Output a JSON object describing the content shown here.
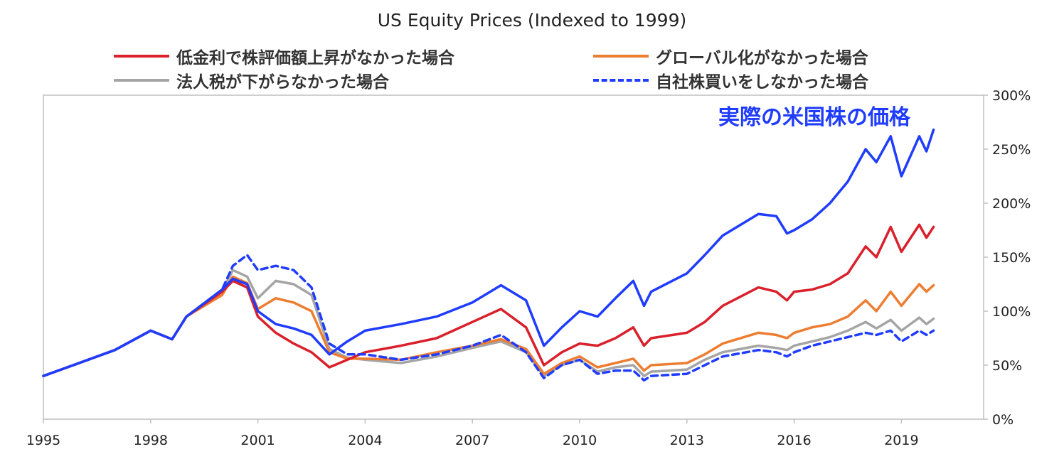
{
  "chart_data": {
    "type": "line",
    "title": "US Equity Prices (Indexed to 1999)",
    "annotation": "実際の米国株の価格",
    "x_ticks": [
      "1995",
      "1998",
      "2001",
      "2004",
      "2007",
      "2010",
      "2013",
      "2016",
      "2019"
    ],
    "y_ticks": [
      "0%",
      "50%",
      "100%",
      "150%",
      "200%",
      "250%",
      "300%"
    ],
    "xlim": [
      1995,
      2021.3
    ],
    "ylim": [
      0,
      300
    ],
    "grid": false,
    "legend_placement": "top",
    "series": [
      {
        "name": "",
        "color": "#1f3cff",
        "style": "solid",
        "points": [
          [
            1995,
            40
          ],
          [
            1996,
            52
          ],
          [
            1997,
            64
          ],
          [
            1998,
            82
          ],
          [
            1998.6,
            74
          ],
          [
            1999,
            95
          ],
          [
            2000,
            120
          ],
          [
            2000.3,
            130
          ],
          [
            2000.7,
            125
          ],
          [
            2001,
            100
          ],
          [
            2001.5,
            88
          ],
          [
            2002,
            84
          ],
          [
            2002.5,
            78
          ],
          [
            2003,
            60
          ],
          [
            2003.5,
            72
          ],
          [
            2004,
            82
          ],
          [
            2005,
            88
          ],
          [
            2006,
            95
          ],
          [
            2007,
            108
          ],
          [
            2007.8,
            124
          ],
          [
            2008.5,
            110
          ],
          [
            2009,
            68
          ],
          [
            2009.5,
            85
          ],
          [
            2010,
            100
          ],
          [
            2010.5,
            95
          ],
          [
            2011,
            112
          ],
          [
            2011.5,
            128
          ],
          [
            2011.8,
            105
          ],
          [
            2012,
            118
          ],
          [
            2013,
            135
          ],
          [
            2013.5,
            152
          ],
          [
            2014,
            170
          ],
          [
            2015,
            190
          ],
          [
            2015.5,
            188
          ],
          [
            2015.8,
            172
          ],
          [
            2016,
            175
          ],
          [
            2016.5,
            185
          ],
          [
            2017,
            200
          ],
          [
            2017.5,
            220
          ],
          [
            2018,
            250
          ],
          [
            2018.3,
            238
          ],
          [
            2018.7,
            262
          ],
          [
            2019,
            225
          ],
          [
            2019.5,
            262
          ],
          [
            2019.7,
            248
          ],
          [
            2019.9,
            268
          ]
        ]
      },
      {
        "name": "低金利で株評価額上昇がなかった場合",
        "color": "#d9202b",
        "style": "solid",
        "points": [
          [
            1995,
            40
          ],
          [
            1996,
            52
          ],
          [
            1997,
            64
          ],
          [
            1998,
            82
          ],
          [
            1998.6,
            74
          ],
          [
            1999,
            95
          ],
          [
            2000,
            118
          ],
          [
            2000.3,
            128
          ],
          [
            2000.7,
            122
          ],
          [
            2001,
            95
          ],
          [
            2001.5,
            80
          ],
          [
            2002,
            70
          ],
          [
            2002.5,
            62
          ],
          [
            2003,
            48
          ],
          [
            2003.5,
            55
          ],
          [
            2004,
            62
          ],
          [
            2005,
            68
          ],
          [
            2006,
            75
          ],
          [
            2007,
            90
          ],
          [
            2007.8,
            102
          ],
          [
            2008.5,
            85
          ],
          [
            2009,
            50
          ],
          [
            2009.5,
            62
          ],
          [
            2010,
            70
          ],
          [
            2010.5,
            68
          ],
          [
            2011,
            75
          ],
          [
            2011.5,
            85
          ],
          [
            2011.8,
            68
          ],
          [
            2012,
            75
          ],
          [
            2013,
            80
          ],
          [
            2013.5,
            90
          ],
          [
            2014,
            105
          ],
          [
            2015,
            122
          ],
          [
            2015.5,
            118
          ],
          [
            2015.8,
            110
          ],
          [
            2016,
            118
          ],
          [
            2016.5,
            120
          ],
          [
            2017,
            125
          ],
          [
            2017.5,
            135
          ],
          [
            2018,
            160
          ],
          [
            2018.3,
            150
          ],
          [
            2018.7,
            178
          ],
          [
            2019,
            155
          ],
          [
            2019.5,
            180
          ],
          [
            2019.7,
            168
          ],
          [
            2019.9,
            178
          ]
        ]
      },
      {
        "name": "グローバル化がなかった場合",
        "color": "#ed7d31",
        "style": "solid",
        "points": [
          [
            1995,
            40
          ],
          [
            1996,
            52
          ],
          [
            1997,
            64
          ],
          [
            1998,
            82
          ],
          [
            1998.6,
            74
          ],
          [
            1999,
            95
          ],
          [
            2000,
            115
          ],
          [
            2000.3,
            132
          ],
          [
            2000.7,
            126
          ],
          [
            2001,
            102
          ],
          [
            2001.5,
            112
          ],
          [
            2002,
            108
          ],
          [
            2002.5,
            100
          ],
          [
            2003,
            62
          ],
          [
            2003.5,
            56
          ],
          [
            2004,
            56
          ],
          [
            2005,
            55
          ],
          [
            2006,
            62
          ],
          [
            2007,
            68
          ],
          [
            2007.8,
            74
          ],
          [
            2008.5,
            65
          ],
          [
            2009,
            42
          ],
          [
            2009.5,
            52
          ],
          [
            2010,
            58
          ],
          [
            2010.5,
            48
          ],
          [
            2011,
            52
          ],
          [
            2011.5,
            56
          ],
          [
            2011.8,
            45
          ],
          [
            2012,
            50
          ],
          [
            2013,
            52
          ],
          [
            2013.5,
            60
          ],
          [
            2014,
            70
          ],
          [
            2015,
            80
          ],
          [
            2015.5,
            78
          ],
          [
            2015.8,
            75
          ],
          [
            2016,
            80
          ],
          [
            2016.5,
            85
          ],
          [
            2017,
            88
          ],
          [
            2017.5,
            95
          ],
          [
            2018,
            110
          ],
          [
            2018.3,
            100
          ],
          [
            2018.7,
            118
          ],
          [
            2019,
            105
          ],
          [
            2019.5,
            125
          ],
          [
            2019.7,
            118
          ],
          [
            2019.9,
            124
          ]
        ]
      },
      {
        "name": "法人税が下がらなかった場合",
        "color": "#a5a5a5",
        "style": "solid",
        "points": [
          [
            1995,
            40
          ],
          [
            1996,
            52
          ],
          [
            1997,
            64
          ],
          [
            1998,
            82
          ],
          [
            1998.6,
            74
          ],
          [
            1999,
            95
          ],
          [
            2000,
            118
          ],
          [
            2000.3,
            138
          ],
          [
            2000.7,
            132
          ],
          [
            2001,
            112
          ],
          [
            2001.5,
            128
          ],
          [
            2002,
            125
          ],
          [
            2002.5,
            115
          ],
          [
            2003,
            65
          ],
          [
            2003.5,
            57
          ],
          [
            2004,
            55
          ],
          [
            2005,
            52
          ],
          [
            2006,
            58
          ],
          [
            2007,
            66
          ],
          [
            2007.8,
            72
          ],
          [
            2008.5,
            62
          ],
          [
            2009,
            40
          ],
          [
            2009.5,
            50
          ],
          [
            2010,
            55
          ],
          [
            2010.5,
            44
          ],
          [
            2011,
            48
          ],
          [
            2011.5,
            50
          ],
          [
            2011.8,
            40
          ],
          [
            2012,
            44
          ],
          [
            2013,
            46
          ],
          [
            2013.5,
            55
          ],
          [
            2014,
            62
          ],
          [
            2015,
            68
          ],
          [
            2015.5,
            66
          ],
          [
            2015.8,
            64
          ],
          [
            2016,
            68
          ],
          [
            2016.5,
            72
          ],
          [
            2017,
            76
          ],
          [
            2017.5,
            82
          ],
          [
            2018,
            90
          ],
          [
            2018.3,
            84
          ],
          [
            2018.7,
            92
          ],
          [
            2019,
            82
          ],
          [
            2019.5,
            94
          ],
          [
            2019.7,
            88
          ],
          [
            2019.9,
            93
          ]
        ]
      },
      {
        "name": "自社株買いをしなかった場合",
        "color": "#1f3cff",
        "style": "dashed",
        "points": [
          [
            1995,
            40
          ],
          [
            1996,
            52
          ],
          [
            1997,
            64
          ],
          [
            1998,
            82
          ],
          [
            1998.6,
            74
          ],
          [
            1999,
            95
          ],
          [
            2000,
            120
          ],
          [
            2000.3,
            142
          ],
          [
            2000.7,
            152
          ],
          [
            2001,
            138
          ],
          [
            2001.5,
            142
          ],
          [
            2002,
            138
          ],
          [
            2002.5,
            122
          ],
          [
            2003,
            70
          ],
          [
            2003.5,
            60
          ],
          [
            2004,
            60
          ],
          [
            2005,
            55
          ],
          [
            2006,
            60
          ],
          [
            2007,
            68
          ],
          [
            2007.8,
            78
          ],
          [
            2008.5,
            62
          ],
          [
            2009,
            38
          ],
          [
            2009.5,
            50
          ],
          [
            2010,
            55
          ],
          [
            2010.5,
            42
          ],
          [
            2011,
            45
          ],
          [
            2011.5,
            45
          ],
          [
            2011.8,
            36
          ],
          [
            2012,
            40
          ],
          [
            2013,
            42
          ],
          [
            2013.5,
            50
          ],
          [
            2014,
            58
          ],
          [
            2015,
            64
          ],
          [
            2015.5,
            62
          ],
          [
            2015.8,
            58
          ],
          [
            2016,
            62
          ],
          [
            2016.5,
            68
          ],
          [
            2017,
            72
          ],
          [
            2017.5,
            76
          ],
          [
            2018,
            80
          ],
          [
            2018.3,
            78
          ],
          [
            2018.7,
            82
          ],
          [
            2019,
            72
          ],
          [
            2019.5,
            82
          ],
          [
            2019.7,
            78
          ],
          [
            2019.9,
            82
          ]
        ]
      }
    ]
  }
}
